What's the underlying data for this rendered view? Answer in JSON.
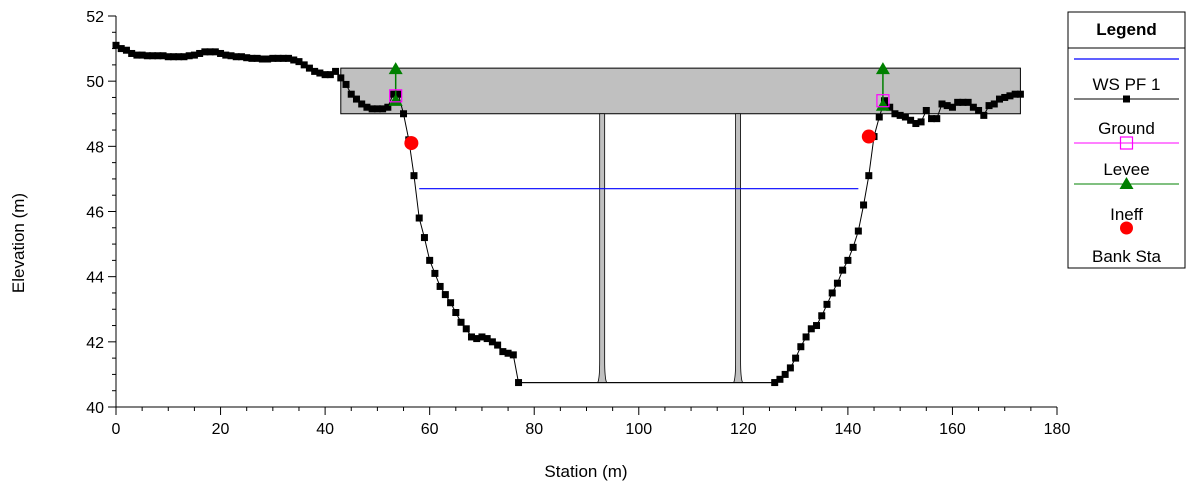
{
  "chart_data": {
    "type": "line",
    "xlabel": "Station (m)",
    "ylabel": "Elevation (m)",
    "xlim": [
      0,
      180
    ],
    "ylim": [
      40,
      52
    ],
    "xticks": [
      0,
      20,
      40,
      60,
      80,
      100,
      120,
      140,
      160,
      180
    ],
    "yticks": [
      40,
      42,
      44,
      46,
      48,
      50,
      52
    ],
    "grid": false,
    "legend": {
      "title": "Legend",
      "placement": "right",
      "entries": [
        "WS PF 1",
        "Ground",
        "Levee",
        "Ineff",
        "Bank Sta"
      ]
    },
    "colors": {
      "ws": "#0000ff",
      "ground": "#000000",
      "levee": "#ff00ff",
      "ineff": "#008000",
      "bank": "#ff0000",
      "deck": "#c0c0c0"
    },
    "series": [
      {
        "name": "Ground",
        "x": [
          0,
          1,
          2,
          3,
          4,
          5,
          6,
          7,
          8,
          9,
          10,
          11,
          12,
          13,
          14,
          15,
          16,
          17,
          18,
          19,
          20,
          21,
          22,
          23,
          24,
          25,
          26,
          27,
          28,
          29,
          30,
          31,
          32,
          33,
          34,
          35,
          36,
          37,
          38,
          39,
          40,
          41,
          42,
          43,
          44,
          45,
          46,
          47,
          48,
          49,
          50,
          51,
          52,
          53,
          54,
          55,
          56,
          57,
          58,
          59,
          60,
          61,
          62,
          63,
          64,
          65,
          66,
          67,
          68,
          69,
          70,
          71,
          72,
          73,
          74,
          75,
          76,
          77,
          126,
          127,
          128,
          129,
          130,
          131,
          132,
          133,
          134,
          135,
          136,
          137,
          138,
          139,
          140,
          141,
          142,
          143,
          144,
          145,
          146,
          147,
          148,
          149,
          150,
          151,
          152,
          153,
          154,
          155,
          156,
          157,
          158,
          159,
          160,
          161,
          162,
          163,
          164,
          165,
          166,
          167,
          168,
          169,
          170,
          171,
          172,
          173
        ],
        "y": [
          51.1,
          51.0,
          50.95,
          50.85,
          50.8,
          50.8,
          50.78,
          50.78,
          50.78,
          50.78,
          50.75,
          50.75,
          50.75,
          50.75,
          50.78,
          50.8,
          50.85,
          50.9,
          50.9,
          50.9,
          50.85,
          50.8,
          50.78,
          50.75,
          50.75,
          50.72,
          50.7,
          50.7,
          50.68,
          50.68,
          50.7,
          50.7,
          50.7,
          50.7,
          50.65,
          50.6,
          50.5,
          50.4,
          50.3,
          50.25,
          50.2,
          50.2,
          50.3,
          50.1,
          49.9,
          49.6,
          49.45,
          49.3,
          49.2,
          49.15,
          49.15,
          49.15,
          49.2,
          49.6,
          49.6,
          49.0,
          48.2,
          47.1,
          45.8,
          45.2,
          44.5,
          44.1,
          43.7,
          43.45,
          43.2,
          42.9,
          42.6,
          42.4,
          42.15,
          42.1,
          42.15,
          42.1,
          42.0,
          41.9,
          41.7,
          41.65,
          41.6,
          40.75,
          40.75,
          40.85,
          41.0,
          41.2,
          41.5,
          41.85,
          42.15,
          42.4,
          42.5,
          42.8,
          43.15,
          43.5,
          43.8,
          44.2,
          44.5,
          44.9,
          45.4,
          46.2,
          47.1,
          48.3,
          48.9,
          49.4,
          49.2,
          49.0,
          48.95,
          48.9,
          48.8,
          48.7,
          48.75,
          49.1,
          48.85,
          48.85,
          49.3,
          49.25,
          49.2,
          49.35,
          49.35,
          49.35,
          49.2,
          49.1,
          48.95,
          49.25,
          49.3,
          49.45,
          49.5,
          49.55,
          49.6,
          49.6
        ]
      },
      {
        "name": "WS PF 1",
        "x": [
          58,
          142
        ],
        "y": [
          46.7,
          46.7
        ]
      },
      {
        "name": "Levee",
        "x": [
          53.5,
          146.7
        ],
        "y": [
          49.55,
          49.4
        ]
      },
      {
        "name": "Ineff",
        "x": [
          53.5,
          146.7
        ],
        "y": [
          50.4,
          50.4
        ]
      },
      {
        "name": "Bank Sta",
        "x": [
          56.5,
          144
        ],
        "y": [
          48.1,
          48.3
        ]
      }
    ],
    "deck": {
      "x": [
        43,
        173
      ],
      "low": 49.0,
      "high": 50.4
    },
    "piers": [
      93,
      119
    ],
    "channel_bottom": {
      "x": [
        77,
        126
      ],
      "y": 40.75
    }
  }
}
